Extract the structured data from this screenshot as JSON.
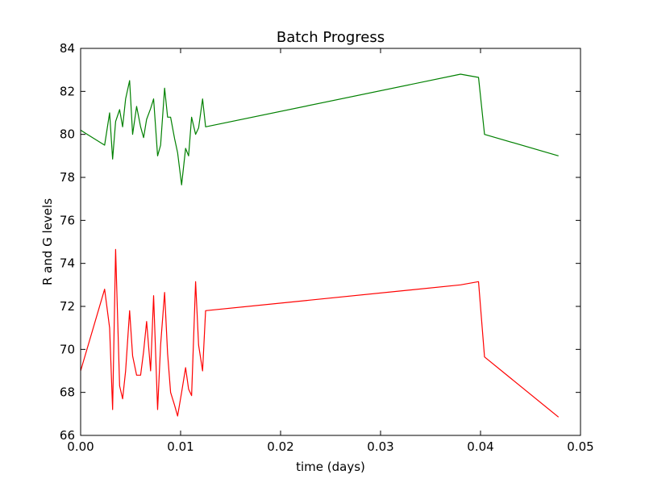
{
  "chart_data": {
    "type": "line",
    "title": "Batch Progress",
    "xlabel": "time (days)",
    "ylabel": "R and G levels",
    "xlim": [
      0.0,
      0.05
    ],
    "ylim": [
      66,
      84
    ],
    "xticks": [
      0.0,
      0.01,
      0.02,
      0.03,
      0.04,
      0.05
    ],
    "xtick_labels": [
      "0.00",
      "0.01",
      "0.02",
      "0.03",
      "0.04",
      "0.05"
    ],
    "yticks": [
      66,
      68,
      70,
      72,
      74,
      76,
      78,
      80,
      82,
      84
    ],
    "ytick_labels": [
      "66",
      "68",
      "70",
      "72",
      "74",
      "76",
      "78",
      "80",
      "82",
      "84"
    ],
    "grid": false,
    "series": [
      {
        "color": "#008000",
        "x": [
          0.0,
          0.0005,
          0.0024,
          0.0029,
          0.0032,
          0.0035,
          0.0039,
          0.0042,
          0.0045,
          0.0049,
          0.0052,
          0.0056,
          0.006,
          0.0063,
          0.0066,
          0.007,
          0.0073,
          0.0077,
          0.008,
          0.0084,
          0.0087,
          0.009,
          0.0094,
          0.0097,
          0.0101,
          0.0105,
          0.0108,
          0.0111,
          0.0115,
          0.0118,
          0.0122,
          0.0125,
          0.038,
          0.0398,
          0.0404,
          0.0478
        ],
        "y": [
          80.2,
          80.05,
          79.5,
          81.0,
          78.85,
          80.6,
          81.15,
          80.35,
          81.65,
          82.5,
          80.0,
          81.3,
          80.35,
          79.85,
          80.7,
          81.2,
          81.65,
          79.0,
          79.5,
          82.15,
          80.8,
          80.8,
          79.8,
          79.15,
          77.65,
          79.35,
          79.0,
          80.8,
          80.0,
          80.3,
          81.65,
          80.35,
          82.8,
          82.65,
          80.0,
          79.0
        ]
      },
      {
        "color": "#ff0000",
        "x": [
          0.0,
          0.0024,
          0.0029,
          0.0032,
          0.0035,
          0.0039,
          0.0042,
          0.0045,
          0.0049,
          0.0052,
          0.0056,
          0.006,
          0.0063,
          0.0066,
          0.007,
          0.0073,
          0.0077,
          0.008,
          0.0084,
          0.0087,
          0.009,
          0.0094,
          0.0097,
          0.0101,
          0.0105,
          0.0108,
          0.0111,
          0.0115,
          0.0118,
          0.0122,
          0.0125,
          0.038,
          0.0398,
          0.0404,
          0.0478
        ],
        "y": [
          69.0,
          72.8,
          71.0,
          67.2,
          74.65,
          68.3,
          67.7,
          69.0,
          71.8,
          69.7,
          68.8,
          68.8,
          69.9,
          71.3,
          69.0,
          72.5,
          67.2,
          70.2,
          72.65,
          69.8,
          68.0,
          67.4,
          66.9,
          68.0,
          69.15,
          68.15,
          67.85,
          73.15,
          70.2,
          69.0,
          71.8,
          73.0,
          73.15,
          69.65,
          66.85
        ]
      }
    ]
  }
}
